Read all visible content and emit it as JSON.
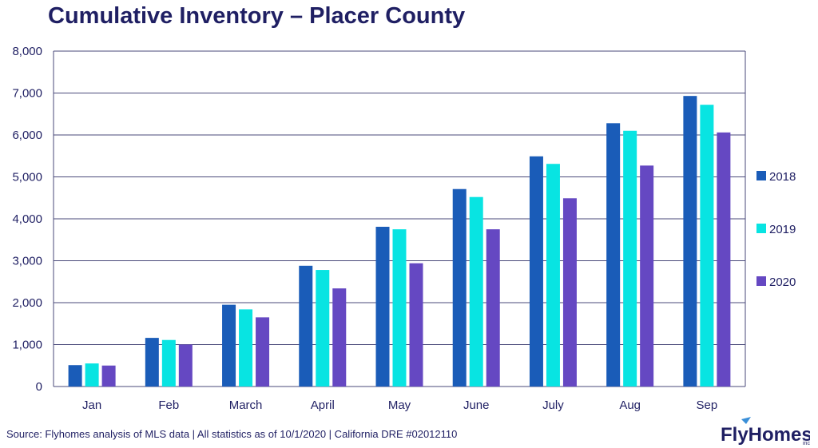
{
  "title": "Cumulative Inventory – Placer County",
  "source": "Source: Flyhomes analysis of MLS data | All statistics as of 10/1/2020 | California DRE #02012110",
  "logo": {
    "text": "FlyHomes",
    "sub": "inc"
  },
  "colors": {
    "2018": "#1a5cb8",
    "2019": "#08e4e2",
    "2020": "#6548c2",
    "text": "#1f1f63",
    "grid": "#4a4a7a"
  },
  "chart_data": {
    "type": "bar",
    "categories": [
      "Jan",
      "Feb",
      "March",
      "April",
      "May",
      "June",
      "July",
      "Aug",
      "Sep"
    ],
    "series": [
      {
        "name": "2018",
        "values": [
          510,
          1160,
          1950,
          2880,
          3810,
          4710,
          5490,
          6280,
          6930
        ]
      },
      {
        "name": "2019",
        "values": [
          550,
          1110,
          1840,
          2780,
          3750,
          4520,
          5310,
          6100,
          6720
        ]
      },
      {
        "name": "2020",
        "values": [
          500,
          1000,
          1650,
          2340,
          2940,
          3750,
          4490,
          5270,
          6060
        ]
      }
    ],
    "ylim": [
      0,
      8000
    ],
    "yticks": [
      "0",
      "1,000",
      "2,000",
      "3,000",
      "4,000",
      "5,000",
      "6,000",
      "7,000",
      "8,000"
    ],
    "legend": "right",
    "grid": true
  }
}
